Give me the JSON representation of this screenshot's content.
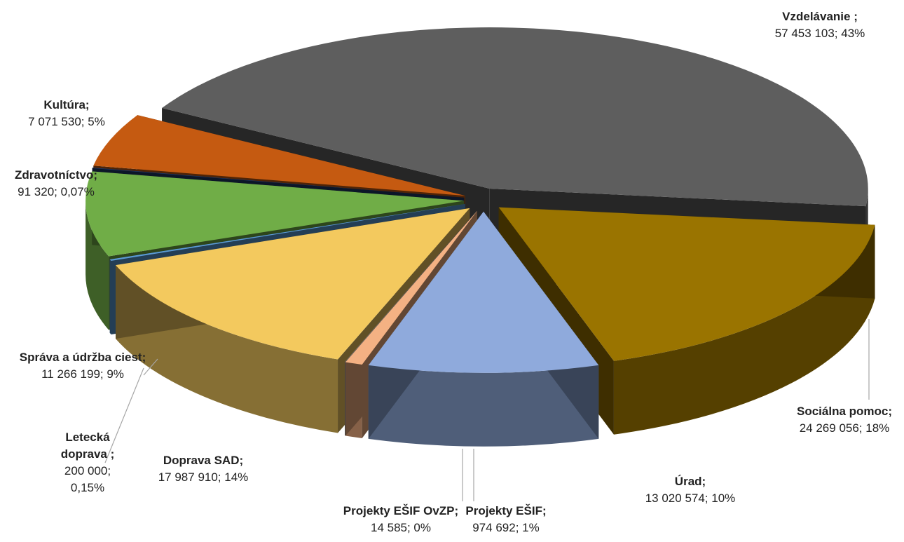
{
  "chart_data": {
    "type": "pie",
    "categories": [
      "Vzdelávanie ;",
      "Sociálna pomoc;",
      "Úrad;",
      "Projekty EŠIF;",
      "Projekty EŠIF OvZP;",
      "Doprava SAD;",
      "Letecká doprava ;",
      "Správa a údržba ciest;",
      "Zdravotníctvo;",
      "Kultúra;"
    ],
    "values": [
      57453103,
      24269056,
      13020574,
      974692,
      14585,
      17987910,
      200000,
      11266199,
      91320,
      7071530
    ],
    "value_labels": [
      "57 453 103; 43%",
      "24 269 056; 18%",
      "13 020 574; 10%",
      "974 692; 1%",
      "14 585; 0%",
      "17 987 910; 14%",
      "200 000; 0,15%",
      "11 266 199; 9%",
      "91 320; 0,07%",
      "7 071 530; 5%"
    ],
    "colors": [
      "#5e5e5e",
      "#9a7400",
      "#8faadc",
      "#f4b183",
      "#a6a6a6",
      "#f3c95e",
      "#5b9bd5",
      "#70ad47",
      "#1f3864",
      "#c55a11"
    ]
  }
}
